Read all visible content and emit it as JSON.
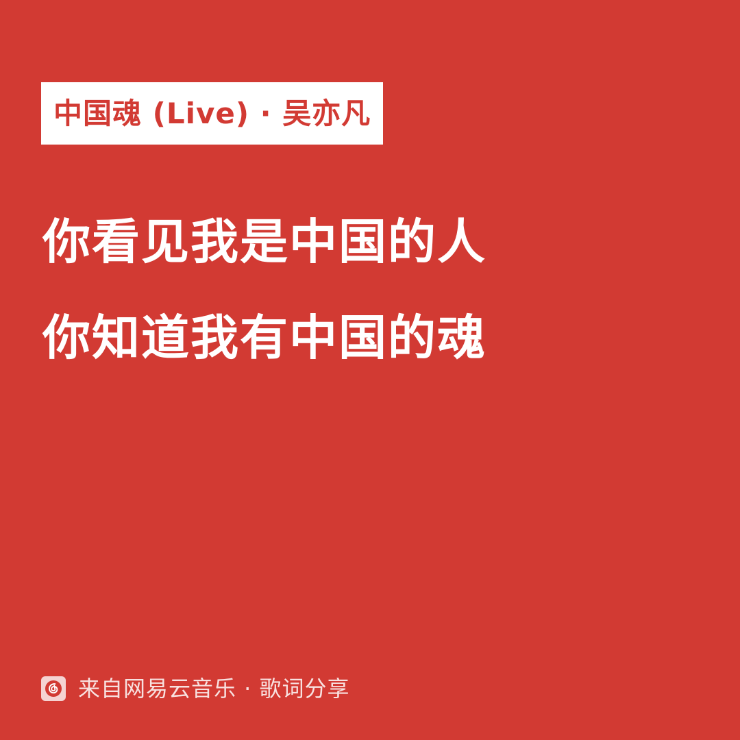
{
  "song_tag": {
    "text": "中国魂 (Live) · 吴亦凡"
  },
  "lyrics": {
    "lines": [
      "你看见我是中国的人",
      "你知道我有中国的魂"
    ]
  },
  "footer": {
    "logo_icon": "netease-cloud-music-logo-icon",
    "text": "来自网易云音乐 · 歌词分享"
  },
  "colors": {
    "background": "#d23a33",
    "tag_background": "#ffffff",
    "tag_text": "#d23a33",
    "lyric_text": "#ffffff"
  }
}
